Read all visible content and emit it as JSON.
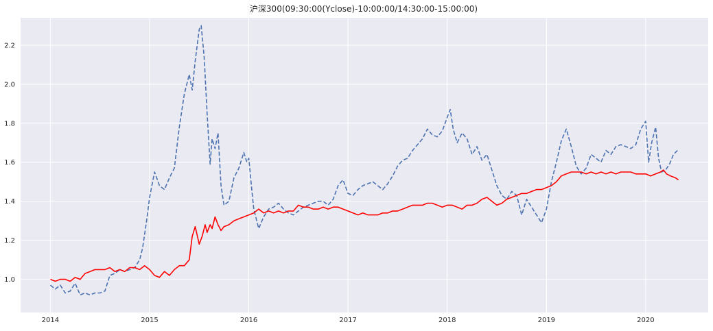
{
  "chart_data": {
    "type": "line",
    "title": "沪深300(09:30:00(Yclose)-10:00:00/14:30:00-15:00:00)",
    "xlabel": "",
    "ylabel": "",
    "x_ticks": [
      "2014",
      "2015",
      "2016",
      "2017",
      "2018",
      "2019",
      "2020"
    ],
    "y_ticks": [
      "1.0",
      "1.2",
      "1.4",
      "1.6",
      "1.8",
      "2.0",
      "2.2"
    ],
    "y_tick_values": [
      1.0,
      1.2,
      1.4,
      1.6,
      1.8,
      2.0,
      2.2
    ],
    "xlim": [
      2013.7,
      2020.63
    ],
    "ylim": [
      0.83,
      2.34
    ],
    "grid": true,
    "background_color": "#eaeaf2",
    "series": [
      {
        "name": "dashed-blue",
        "color": "#4c72b0",
        "style": "dashed",
        "x": [
          2014.0,
          2014.05,
          2014.1,
          2014.15,
          2014.2,
          2014.25,
          2014.3,
          2014.35,
          2014.4,
          2014.45,
          2014.5,
          2014.55,
          2014.6,
          2014.65,
          2014.7,
          2014.75,
          2014.8,
          2014.85,
          2014.9,
          2014.93,
          2014.97,
          2015.0,
          2015.05,
          2015.1,
          2015.15,
          2015.2,
          2015.25,
          2015.3,
          2015.35,
          2015.4,
          2015.43,
          2015.46,
          2015.5,
          2015.52,
          2015.55,
          2015.58,
          2015.61,
          2015.63,
          2015.66,
          2015.69,
          2015.72,
          2015.75,
          2015.8,
          2015.85,
          2015.9,
          2015.95,
          2015.98,
          2016.0,
          2016.03,
          2016.05,
          2016.08,
          2016.1,
          2016.15,
          2016.2,
          2016.25,
          2016.3,
          2016.35,
          2016.4,
          2016.45,
          2016.5,
          2016.55,
          2016.6,
          2016.65,
          2016.7,
          2016.75,
          2016.8,
          2016.85,
          2016.9,
          2016.95,
          2017.0,
          2017.05,
          2017.1,
          2017.15,
          2017.2,
          2017.25,
          2017.3,
          2017.35,
          2017.4,
          2017.45,
          2017.5,
          2017.55,
          2017.6,
          2017.65,
          2017.7,
          2017.75,
          2017.8,
          2017.85,
          2017.9,
          2017.95,
          2018.0,
          2018.03,
          2018.06,
          2018.1,
          2018.15,
          2018.2,
          2018.25,
          2018.3,
          2018.35,
          2018.4,
          2018.45,
          2018.5,
          2018.55,
          2018.6,
          2018.65,
          2018.7,
          2018.75,
          2018.8,
          2018.85,
          2018.9,
          2018.95,
          2019.0,
          2019.05,
          2019.1,
          2019.15,
          2019.2,
          2019.25,
          2019.3,
          2019.35,
          2019.4,
          2019.45,
          2019.5,
          2019.55,
          2019.6,
          2019.65,
          2019.7,
          2019.75,
          2019.8,
          2019.85,
          2019.9,
          2019.95,
          2020.0,
          2020.03,
          2020.06,
          2020.1,
          2020.13,
          2020.16,
          2020.2,
          2020.24,
          2020.28,
          2020.32
        ],
        "values": [
          0.97,
          0.95,
          0.97,
          0.93,
          0.94,
          0.98,
          0.92,
          0.93,
          0.92,
          0.93,
          0.93,
          0.94,
          1.02,
          1.03,
          1.05,
          1.04,
          1.05,
          1.06,
          1.1,
          1.16,
          1.3,
          1.42,
          1.55,
          1.48,
          1.46,
          1.52,
          1.57,
          1.78,
          1.95,
          2.05,
          1.97,
          2.12,
          2.28,
          2.3,
          2.14,
          1.85,
          1.59,
          1.72,
          1.67,
          1.75,
          1.48,
          1.38,
          1.4,
          1.52,
          1.57,
          1.65,
          1.6,
          1.62,
          1.46,
          1.36,
          1.3,
          1.26,
          1.32,
          1.36,
          1.37,
          1.39,
          1.36,
          1.34,
          1.33,
          1.35,
          1.37,
          1.38,
          1.39,
          1.4,
          1.4,
          1.38,
          1.41,
          1.48,
          1.51,
          1.44,
          1.43,
          1.46,
          1.48,
          1.49,
          1.5,
          1.48,
          1.46,
          1.49,
          1.53,
          1.58,
          1.61,
          1.62,
          1.66,
          1.69,
          1.72,
          1.77,
          1.74,
          1.73,
          1.76,
          1.83,
          1.87,
          1.77,
          1.7,
          1.75,
          1.72,
          1.64,
          1.68,
          1.61,
          1.64,
          1.56,
          1.48,
          1.43,
          1.41,
          1.45,
          1.43,
          1.33,
          1.41,
          1.37,
          1.33,
          1.29,
          1.36,
          1.5,
          1.6,
          1.71,
          1.77,
          1.68,
          1.58,
          1.54,
          1.57,
          1.64,
          1.62,
          1.6,
          1.66,
          1.64,
          1.68,
          1.69,
          1.68,
          1.67,
          1.69,
          1.77,
          1.81,
          1.6,
          1.7,
          1.78,
          1.62,
          1.55,
          1.56,
          1.59,
          1.64,
          1.66
        ]
      },
      {
        "name": "solid-red",
        "color": "#ff0000",
        "style": "solid",
        "x": [
          2014.0,
          2014.05,
          2014.1,
          2014.15,
          2014.2,
          2014.25,
          2014.3,
          2014.35,
          2014.4,
          2014.45,
          2014.5,
          2014.55,
          2014.6,
          2014.65,
          2014.7,
          2014.75,
          2014.8,
          2014.85,
          2014.9,
          2014.95,
          2015.0,
          2015.05,
          2015.1,
          2015.15,
          2015.2,
          2015.25,
          2015.3,
          2015.35,
          2015.4,
          2015.43,
          2015.46,
          2015.5,
          2015.53,
          2015.56,
          2015.58,
          2015.61,
          2015.63,
          2015.66,
          2015.69,
          2015.72,
          2015.75,
          2015.8,
          2015.85,
          2015.9,
          2015.95,
          2016.0,
          2016.05,
          2016.1,
          2016.15,
          2016.2,
          2016.25,
          2016.3,
          2016.35,
          2016.4,
          2016.45,
          2016.5,
          2016.55,
          2016.6,
          2016.65,
          2016.7,
          2016.75,
          2016.8,
          2016.85,
          2016.9,
          2016.95,
          2017.0,
          2017.05,
          2017.1,
          2017.15,
          2017.2,
          2017.25,
          2017.3,
          2017.35,
          2017.4,
          2017.45,
          2017.5,
          2017.55,
          2017.6,
          2017.65,
          2017.7,
          2017.75,
          2017.8,
          2017.85,
          2017.9,
          2017.95,
          2018.0,
          2018.05,
          2018.1,
          2018.15,
          2018.2,
          2018.25,
          2018.3,
          2018.35,
          2018.4,
          2018.45,
          2018.5,
          2018.55,
          2018.6,
          2018.65,
          2018.7,
          2018.75,
          2018.8,
          2018.85,
          2018.9,
          2018.95,
          2019.0,
          2019.05,
          2019.1,
          2019.15,
          2019.2,
          2019.25,
          2019.3,
          2019.35,
          2019.4,
          2019.45,
          2019.5,
          2019.55,
          2019.6,
          2019.65,
          2019.7,
          2019.75,
          2019.8,
          2019.85,
          2019.9,
          2019.95,
          2020.0,
          2020.05,
          2020.1,
          2020.15,
          2020.18,
          2020.21,
          2020.25,
          2020.3,
          2020.33
        ],
        "values": [
          1.0,
          0.99,
          1.0,
          1.0,
          0.99,
          1.01,
          1.0,
          1.03,
          1.04,
          1.05,
          1.05,
          1.05,
          1.06,
          1.04,
          1.05,
          1.04,
          1.06,
          1.06,
          1.05,
          1.07,
          1.05,
          1.02,
          1.01,
          1.04,
          1.02,
          1.05,
          1.07,
          1.07,
          1.1,
          1.22,
          1.27,
          1.18,
          1.22,
          1.28,
          1.24,
          1.28,
          1.26,
          1.32,
          1.28,
          1.25,
          1.27,
          1.28,
          1.3,
          1.31,
          1.32,
          1.33,
          1.34,
          1.36,
          1.34,
          1.35,
          1.34,
          1.35,
          1.34,
          1.35,
          1.35,
          1.38,
          1.37,
          1.37,
          1.36,
          1.36,
          1.37,
          1.36,
          1.37,
          1.37,
          1.36,
          1.35,
          1.34,
          1.33,
          1.34,
          1.33,
          1.33,
          1.33,
          1.34,
          1.34,
          1.35,
          1.35,
          1.36,
          1.37,
          1.38,
          1.38,
          1.38,
          1.39,
          1.39,
          1.38,
          1.37,
          1.38,
          1.38,
          1.37,
          1.36,
          1.38,
          1.38,
          1.39,
          1.41,
          1.42,
          1.4,
          1.38,
          1.39,
          1.41,
          1.42,
          1.43,
          1.44,
          1.44,
          1.45,
          1.46,
          1.46,
          1.47,
          1.48,
          1.5,
          1.53,
          1.54,
          1.55,
          1.55,
          1.55,
          1.54,
          1.55,
          1.54,
          1.55,
          1.54,
          1.55,
          1.54,
          1.55,
          1.55,
          1.55,
          1.54,
          1.54,
          1.54,
          1.53,
          1.54,
          1.55,
          1.56,
          1.54,
          1.53,
          1.52,
          1.51
        ]
      }
    ]
  }
}
